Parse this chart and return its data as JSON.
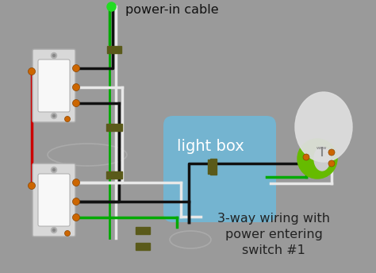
{
  "bg_color": "#9a9a9a",
  "title": "3-way wiring with\npower entering\nswitch #1",
  "title_color": "#222222",
  "power_label": "power-in cable",
  "light_label": "light box",
  "wire_black": "#111111",
  "wire_white": "#e8e8e8",
  "wire_red": "#cc0000",
  "wire_green": "#00aa00",
  "wire_green_bright": "#22dd22",
  "light_box_color": "#6fb8d8",
  "bulb_glass": "#e0e0e0",
  "bulb_base_color": "#66bb00",
  "clip_color": "#5a5a1a",
  "terminal_color": "#cc6600",
  "switch_face": "#e0e0e0",
  "switch_rocker": "#f5f5f5"
}
